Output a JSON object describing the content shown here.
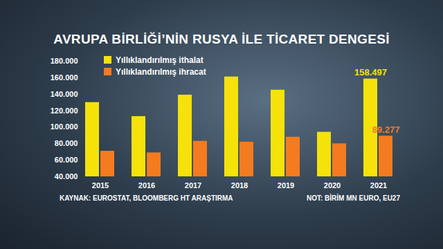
{
  "chart_data": {
    "type": "bar",
    "title": "AVRUPA BİRLİĞİ’NİN RUSYA İLE TİCARET DENGESİ",
    "source": "KAYNAK: EUROSTAT, BLOOMBERG HT ARAŞTIRMA",
    "note": "NOT: BİRİM MN EURO, EU27",
    "categories": [
      "2015",
      "2016",
      "2017",
      "2018",
      "2019",
      "2020",
      "2021"
    ],
    "series": [
      {
        "name": "Yıllıklandırılmış ithalat",
        "color": "#f5e20a",
        "values": [
          130000,
          113000,
          139000,
          161000,
          145000,
          94000,
          158497
        ],
        "value_labels": [
          null,
          null,
          null,
          null,
          null,
          null,
          "158.497"
        ]
      },
      {
        "name": "Yıllıklandırılmış ihracat",
        "color": "#f47b20",
        "values": [
          71000,
          69000,
          83000,
          82000,
          88000,
          80000,
          89277
        ],
        "value_labels": [
          null,
          null,
          null,
          null,
          null,
          null,
          "89.277"
        ]
      }
    ],
    "ylim": [
      40000,
      180000
    ],
    "yticks": [
      {
        "value": 40000,
        "label": "40.000"
      },
      {
        "value": 60000,
        "label": "60.000"
      },
      {
        "value": 80000,
        "label": "80.000"
      },
      {
        "value": 100000,
        "label": "100.000"
      },
      {
        "value": 120000,
        "label": "120.000"
      },
      {
        "value": 140000,
        "label": "140.000"
      },
      {
        "value": 160000,
        "label": "160.000"
      },
      {
        "value": 180000,
        "label": "180.000"
      }
    ],
    "grid": false,
    "legend": "top-left"
  }
}
